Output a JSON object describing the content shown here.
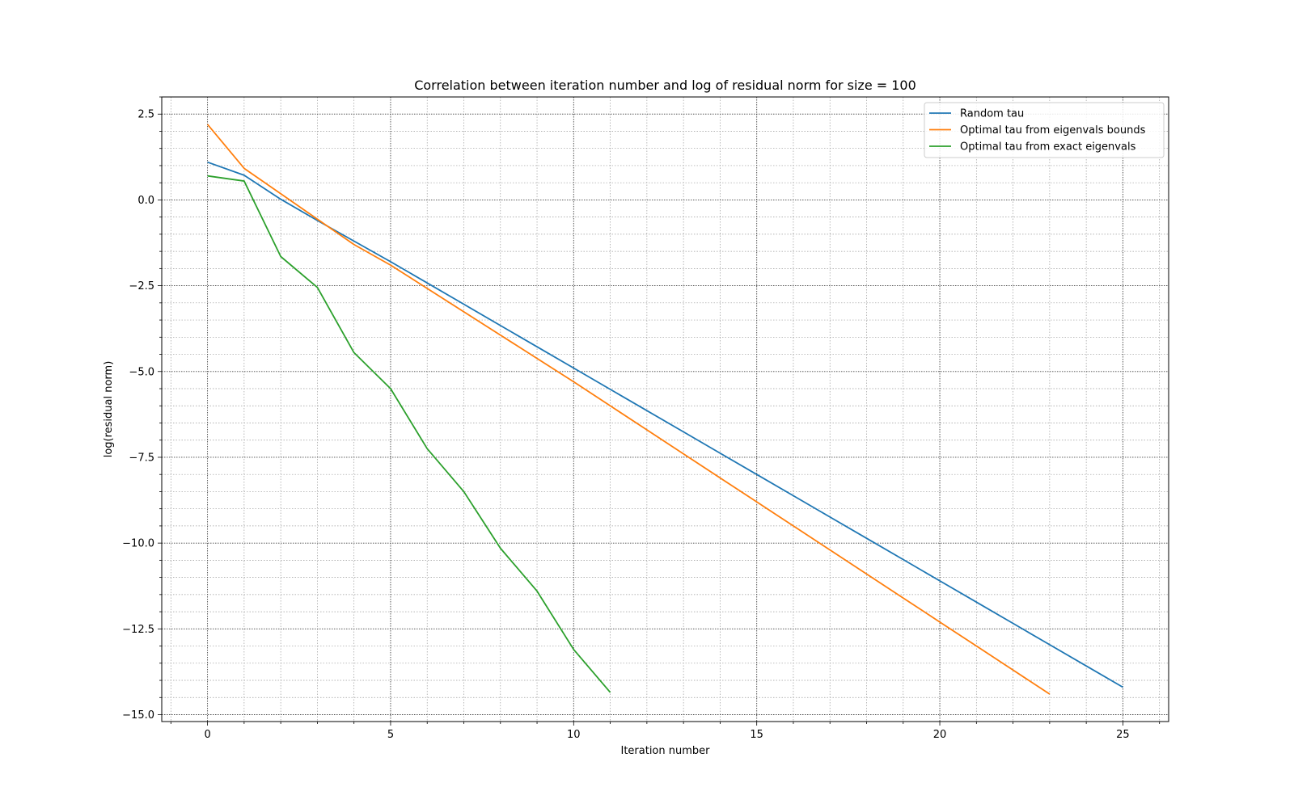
{
  "chart_data": {
    "type": "line",
    "title": "Correlation between iteration number and log of residual norm for size = 100",
    "xlabel": "Iteration number",
    "ylabel": "log(residual norm)",
    "xlim": [
      -1.25,
      26.25
    ],
    "ylim": [
      -15.2,
      3.0
    ],
    "xticks": [
      0,
      5,
      10,
      15,
      20,
      25
    ],
    "xtick_labels": [
      "0",
      "5",
      "10",
      "15",
      "20",
      "25"
    ],
    "yticks": [
      2.5,
      0.0,
      -2.5,
      -5.0,
      -7.5,
      -10.0,
      -12.5,
      -15.0
    ],
    "ytick_labels": [
      "2.5",
      "0.0",
      "−2.5",
      "−5.0",
      "−7.5",
      "−10.0",
      "−12.5",
      "−15.0"
    ],
    "grid": true,
    "minor_grid": true,
    "legend_position": "top-right",
    "series": [
      {
        "name": "Random tau",
        "color": "#1f77b4",
        "x": [
          0,
          1,
          2,
          3,
          4,
          5,
          6,
          7,
          8,
          9,
          10,
          11,
          12,
          13,
          14,
          15,
          16,
          17,
          18,
          19,
          20,
          21,
          22,
          23,
          24,
          25
        ],
        "y": [
          1.1,
          0.72,
          0.02,
          -0.6,
          -1.2,
          -1.8,
          -2.42,
          -3.04,
          -3.66,
          -4.28,
          -4.9,
          -5.52,
          -6.14,
          -6.76,
          -7.38,
          -8.0,
          -8.62,
          -9.24,
          -9.86,
          -10.48,
          -11.1,
          -11.72,
          -12.34,
          -12.96,
          -13.58,
          -14.2
        ]
      },
      {
        "name": "Optimal tau from eigenvals bounds",
        "color": "#ff7f0e",
        "x": [
          0,
          1,
          2,
          3,
          4,
          5,
          6,
          7,
          8,
          9,
          10,
          11,
          12,
          13,
          14,
          15,
          16,
          17,
          18,
          19,
          20,
          21,
          22,
          23
        ],
        "y": [
          2.2,
          0.92,
          0.18,
          -0.56,
          -1.3,
          -1.9,
          -2.58,
          -3.26,
          -3.94,
          -4.62,
          -5.3,
          -6.0,
          -6.7,
          -7.4,
          -8.1,
          -8.8,
          -9.5,
          -10.2,
          -10.9,
          -11.6,
          -12.3,
          -13.0,
          -13.7,
          -14.4
        ]
      },
      {
        "name": "Optimal tau from exact eigenvals",
        "color": "#2ca02c",
        "x": [
          0,
          1,
          2,
          3,
          4,
          5,
          6,
          7,
          8,
          9,
          10,
          11
        ],
        "y": [
          0.7,
          0.55,
          -1.65,
          -2.55,
          -4.45,
          -5.5,
          -7.25,
          -8.5,
          -10.15,
          -11.4,
          -13.1,
          -14.35
        ]
      }
    ]
  }
}
